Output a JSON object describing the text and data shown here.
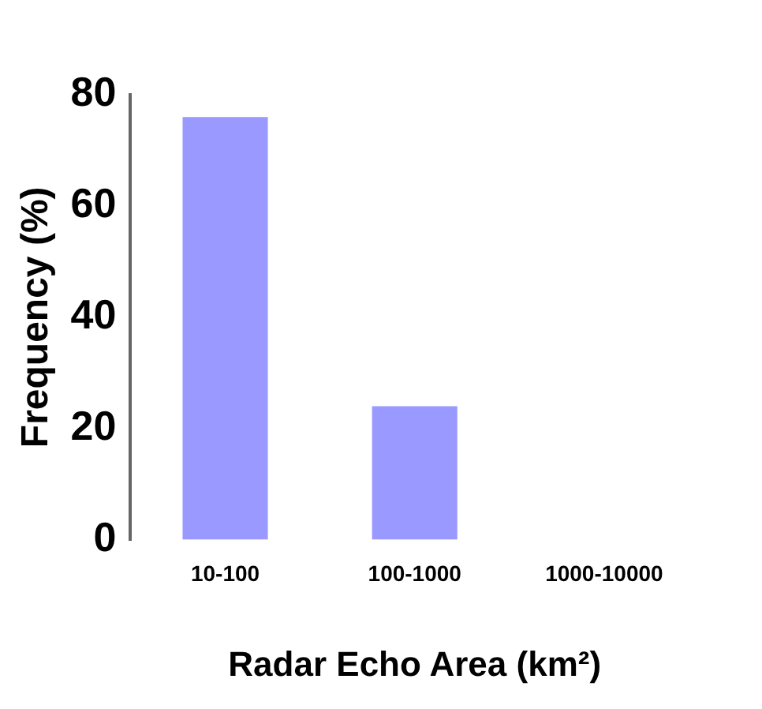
{
  "chart_data": {
    "type": "bar",
    "xlabel": "Radar Echo Area (km²)",
    "ylabel": "Frequency (%)",
    "categories": [
      "10-100",
      "100-1000",
      "1000-10000"
    ],
    "values": [
      76,
      24,
      0
    ],
    "color": "#9999ff",
    "ylim": [
      0,
      80
    ],
    "yticks": [
      0,
      20,
      40,
      60,
      80
    ],
    "grid": false,
    "legend": false
  }
}
